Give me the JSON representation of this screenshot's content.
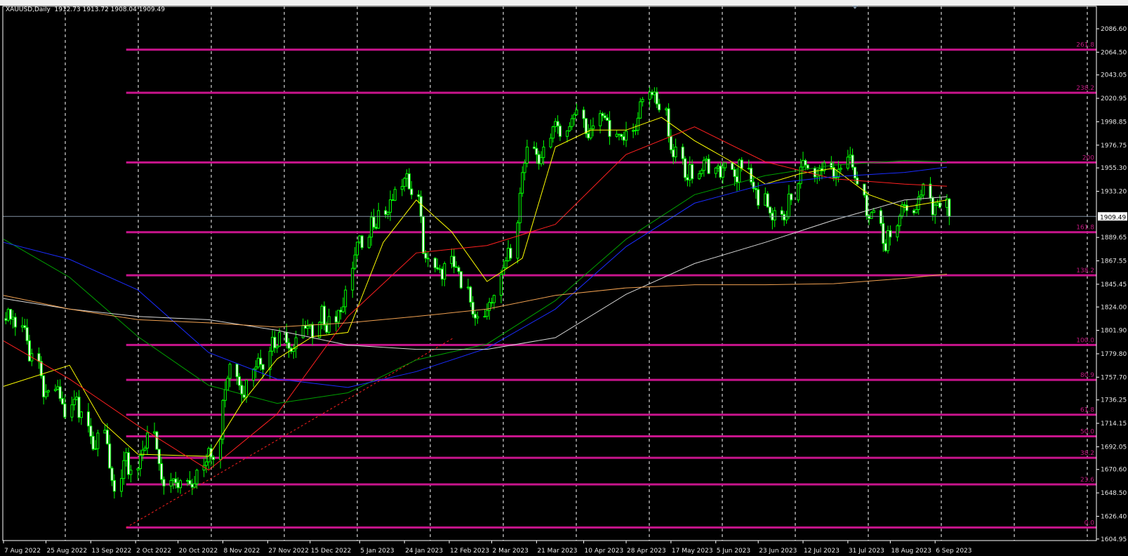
{
  "header": {
    "symbol": "XAUUSD,Daily",
    "ohlc": "1912.73 1913.72 1908.04 1909.49"
  },
  "chart_data": {
    "type": "candlestick",
    "symbol": "XAUUSD",
    "timeframe": "Daily",
    "current_price": 1909.49,
    "ylim": [
      1604.95,
      2098
    ],
    "y_ticks": [
      2086.6,
      2064.5,
      2043.05,
      2020.95,
      1998.85,
      1976.75,
      1955.3,
      1933.2,
      1889.65,
      1867.55,
      1845.45,
      1824.0,
      1801.9,
      1779.8,
      1757.7,
      1736.25,
      1714.15,
      1692.05,
      1670.6,
      1648.5,
      1626.4,
      1604.95
    ],
    "y_tick_labels": [
      "2086.60",
      "2064.50",
      "2043.05",
      "2020.95",
      "1998.85",
      "1976.75",
      "1955.30",
      "1933.20",
      "1889.65",
      "1867.55",
      "1845.45",
      "1824.00",
      "1801.90",
      "1779.80",
      "1757.70",
      "1736.25",
      "1714.15",
      "1692.05",
      "1670.60",
      "1648.50",
      "1626.40",
      "1604.95"
    ],
    "price_label": "1909.49",
    "x_ticks": [
      {
        "date": "2022-08-07",
        "label": "7 Aug 2022"
      },
      {
        "date": "2022-08-25",
        "label": "25 Aug 2022"
      },
      {
        "date": "2022-09-13",
        "label": "13 Sep 2022"
      },
      {
        "date": "2022-10-02",
        "label": "2 Oct 2022"
      },
      {
        "date": "2022-10-20",
        "label": "20 Oct 2022"
      },
      {
        "date": "2022-11-08",
        "label": "8 Nov 2022"
      },
      {
        "date": "2022-11-27",
        "label": "27 Nov 2022"
      },
      {
        "date": "2022-12-15",
        "label": "15 Dec 2022"
      },
      {
        "date": "2023-01-05",
        "label": "5 Jan 2023"
      },
      {
        "date": "2023-01-24",
        "label": "24 Jan 2023"
      },
      {
        "date": "2023-02-12",
        "label": "12 Feb 2023"
      },
      {
        "date": "2023-03-02",
        "label": "2 Mar 2023"
      },
      {
        "date": "2023-03-21",
        "label": "21 Mar 2023"
      },
      {
        "date": "2023-04-10",
        "label": "10 Apr 2023"
      },
      {
        "date": "2023-04-28",
        "label": "28 Apr 2023"
      },
      {
        "date": "2023-05-17",
        "label": "17 May 2023"
      },
      {
        "date": "2023-06-05",
        "label": "5 Jun 2023"
      },
      {
        "date": "2023-06-23",
        "label": "23 Jun 2023"
      },
      {
        "date": "2023-07-12",
        "label": "12 Jul 2023"
      },
      {
        "date": "2023-07-31",
        "label": "31 Jul 2023"
      },
      {
        "date": "2023-08-18",
        "label": "18 Aug 2023"
      },
      {
        "date": "2023-09-06",
        "label": "6 Sep 2023"
      }
    ],
    "weekly_closes": [
      [
        "2022-08-12",
        1805
      ],
      [
        "2022-08-19",
        1780
      ],
      [
        "2022-08-26",
        1745
      ],
      [
        "2022-09-02",
        1720
      ],
      [
        "2022-09-09",
        1725
      ],
      [
        "2022-09-16",
        1705
      ],
      [
        "2022-09-23",
        1650
      ],
      [
        "2022-09-30",
        1670
      ],
      [
        "2022-10-07",
        1705
      ],
      [
        "2022-10-14",
        1655
      ],
      [
        "2022-10-21",
        1660
      ],
      [
        "2022-10-28",
        1670
      ],
      [
        "2022-11-04",
        1680
      ],
      [
        "2022-11-11",
        1770
      ],
      [
        "2022-11-18",
        1755
      ],
      [
        "2022-11-25",
        1765
      ],
      [
        "2022-12-02",
        1800
      ],
      [
        "2022-12-09",
        1795
      ],
      [
        "2022-12-16",
        1795
      ],
      [
        "2022-12-23",
        1815
      ],
      [
        "2022-12-30",
        1840
      ],
      [
        "2023-01-06",
        1880
      ],
      [
        "2023-01-13",
        1915
      ],
      [
        "2023-01-20",
        1935
      ],
      [
        "2023-01-27",
        1930
      ],
      [
        "2023-02-03",
        1870
      ],
      [
        "2023-02-10",
        1865
      ],
      [
        "2023-02-17",
        1842
      ],
      [
        "2023-02-24",
        1815
      ],
      [
        "2023-03-03",
        1835
      ],
      [
        "2023-03-10",
        1870
      ],
      [
        "2023-03-17",
        1975
      ],
      [
        "2023-03-24",
        1975
      ],
      [
        "2023-03-31",
        1985
      ],
      [
        "2023-04-07",
        2010
      ],
      [
        "2023-04-14",
        1995
      ],
      [
        "2023-04-21",
        1985
      ],
      [
        "2023-04-28",
        1990
      ],
      [
        "2023-05-05",
        2020
      ],
      [
        "2023-05-12",
        2010
      ],
      [
        "2023-05-19",
        1975
      ],
      [
        "2023-05-26",
        1945
      ],
      [
        "2023-06-02",
        1950
      ],
      [
        "2023-06-09",
        1960
      ],
      [
        "2023-06-16",
        1955
      ],
      [
        "2023-06-23",
        1920
      ],
      [
        "2023-06-30",
        1915
      ],
      [
        "2023-07-07",
        1925
      ],
      [
        "2023-07-14",
        1955
      ],
      [
        "2023-07-21",
        1960
      ],
      [
        "2023-07-28",
        1955
      ],
      [
        "2023-08-04",
        1940
      ],
      [
        "2023-08-11",
        1915
      ],
      [
        "2023-08-18",
        1890
      ],
      [
        "2023-08-25",
        1915
      ],
      [
        "2023-09-01",
        1940
      ],
      [
        "2023-09-08",
        1918
      ],
      [
        "2023-09-12",
        1909.49
      ]
    ],
    "moving_averages": [
      {
        "color": "#ffff00",
        "points": [
          [
            "2022-08-07",
            1749
          ],
          [
            "2022-09-04",
            1769
          ],
          [
            "2022-09-18",
            1715
          ],
          [
            "2022-10-03",
            1685
          ],
          [
            "2022-11-02",
            1683
          ],
          [
            "2022-11-16",
            1733
          ],
          [
            "2022-12-01",
            1775
          ],
          [
            "2022-12-16",
            1796
          ],
          [
            "2022-12-31",
            1800
          ],
          [
            "2023-01-15",
            1885
          ],
          [
            "2023-01-29",
            1925
          ],
          [
            "2023-02-13",
            1895
          ],
          [
            "2023-02-28",
            1848
          ],
          [
            "2023-03-15",
            1870
          ],
          [
            "2023-03-29",
            1975
          ],
          [
            "2023-04-13",
            1991
          ],
          [
            "2023-04-28",
            1991
          ],
          [
            "2023-05-13",
            2003
          ],
          [
            "2023-05-27",
            1981
          ],
          [
            "2023-06-11",
            1962
          ],
          [
            "2023-06-26",
            1940
          ],
          [
            "2023-07-11",
            1950
          ],
          [
            "2023-07-25",
            1955
          ],
          [
            "2023-08-09",
            1930
          ],
          [
            "2023-08-24",
            1918
          ],
          [
            "2023-09-11",
            1925
          ]
        ]
      },
      {
        "color": "#ff2020",
        "points": [
          [
            "2022-08-07",
            1792
          ],
          [
            "2022-09-04",
            1756
          ],
          [
            "2022-10-03",
            1712
          ],
          [
            "2022-11-02",
            1670
          ],
          [
            "2022-12-01",
            1723
          ],
          [
            "2022-12-31",
            1815
          ],
          [
            "2023-01-29",
            1875
          ],
          [
            "2023-02-28",
            1882
          ],
          [
            "2023-03-29",
            1902
          ],
          [
            "2023-04-28",
            1968
          ],
          [
            "2023-05-27",
            1994
          ],
          [
            "2023-06-26",
            1961
          ],
          [
            "2023-07-25",
            1945
          ],
          [
            "2023-08-24",
            1940
          ],
          [
            "2023-09-11",
            1938
          ]
        ]
      },
      {
        "color": "#00a000",
        "points": [
          [
            "2022-08-07",
            1888
          ],
          [
            "2022-09-04",
            1852
          ],
          [
            "2022-10-03",
            1796
          ],
          [
            "2022-11-02",
            1750
          ],
          [
            "2022-12-01",
            1733
          ],
          [
            "2022-12-31",
            1743
          ],
          [
            "2023-01-29",
            1774
          ],
          [
            "2023-02-28",
            1789
          ],
          [
            "2023-03-29",
            1830
          ],
          [
            "2023-04-28",
            1888
          ],
          [
            "2023-05-27",
            1930
          ],
          [
            "2023-06-26",
            1948
          ],
          [
            "2023-07-25",
            1958
          ],
          [
            "2023-08-24",
            1962
          ],
          [
            "2023-09-11",
            1961
          ]
        ]
      },
      {
        "color": "#1a2cff",
        "points": [
          [
            "2022-08-07",
            1885
          ],
          [
            "2022-09-04",
            1869
          ],
          [
            "2022-10-03",
            1840
          ],
          [
            "2022-11-02",
            1781
          ],
          [
            "2022-12-01",
            1756
          ],
          [
            "2022-12-31",
            1748
          ],
          [
            "2023-01-29",
            1763
          ],
          [
            "2023-02-28",
            1785
          ],
          [
            "2023-03-29",
            1822
          ],
          [
            "2023-04-28",
            1881
          ],
          [
            "2023-05-27",
            1922
          ],
          [
            "2023-06-26",
            1940
          ],
          [
            "2023-07-25",
            1947
          ],
          [
            "2023-08-24",
            1951
          ],
          [
            "2023-09-11",
            1956
          ]
        ]
      },
      {
        "color": "#d8d8d8",
        "points": [
          [
            "2022-08-07",
            1832
          ],
          [
            "2022-09-04",
            1822
          ],
          [
            "2022-10-03",
            1815
          ],
          [
            "2022-11-02",
            1812
          ],
          [
            "2022-12-01",
            1802
          ],
          [
            "2022-12-31",
            1788
          ],
          [
            "2023-01-29",
            1784
          ],
          [
            "2023-02-28",
            1784
          ],
          [
            "2023-03-29",
            1795
          ],
          [
            "2023-04-28",
            1836
          ],
          [
            "2023-05-27",
            1865
          ],
          [
            "2023-06-26",
            1885
          ],
          [
            "2023-07-25",
            1906
          ],
          [
            "2023-08-24",
            1925
          ],
          [
            "2023-09-11",
            1928
          ]
        ]
      },
      {
        "color": "#f0a050",
        "points": [
          [
            "2022-08-07",
            1835
          ],
          [
            "2022-09-04",
            1822
          ],
          [
            "2022-10-03",
            1812
          ],
          [
            "2022-11-02",
            1809
          ],
          [
            "2022-12-01",
            1805
          ],
          [
            "2022-12-31",
            1809
          ],
          [
            "2023-01-29",
            1815
          ],
          [
            "2023-02-28",
            1822
          ],
          [
            "2023-03-29",
            1835
          ],
          [
            "2023-04-28",
            1842
          ],
          [
            "2023-05-27",
            1845
          ],
          [
            "2023-06-26",
            1845
          ],
          [
            "2023-07-25",
            1846
          ],
          [
            "2023-08-24",
            1851
          ],
          [
            "2023-09-11",
            1855
          ]
        ]
      }
    ],
    "fibonacci": {
      "color": "#c8148c",
      "start_date": "2022-09-28",
      "levels": [
        {
          "label": "261.8",
          "price": 2066.9
        },
        {
          "label": "238.2",
          "price": 2026.2
        },
        {
          "label": "200",
          "price": 1960.4
        },
        {
          "label": "161.8",
          "price": 1894.6
        },
        {
          "label": "138.2",
          "price": 1853.9
        },
        {
          "label": "100.0",
          "price": 1788.1
        },
        {
          "label": "80.9",
          "price": 1755.2
        },
        {
          "label": "61.8",
          "price": 1722.3
        },
        {
          "label": "50.0",
          "price": 1701.9
        },
        {
          "label": "38.2",
          "price": 1681.6
        },
        {
          "label": "23.6",
          "price": 1656.5
        },
        {
          "label": "0.0",
          "price": 1615.8
        }
      ],
      "trendline": [
        [
          "2022-09-28",
          1615.8
        ],
        [
          "2023-02-14",
          1795
        ]
      ]
    },
    "colors": {
      "background": "#000000",
      "bull_candle": "#00ff00",
      "bear_candle_fill": "#ffffff",
      "grid": "#ffffff",
      "price_line": "#8090a0"
    }
  }
}
